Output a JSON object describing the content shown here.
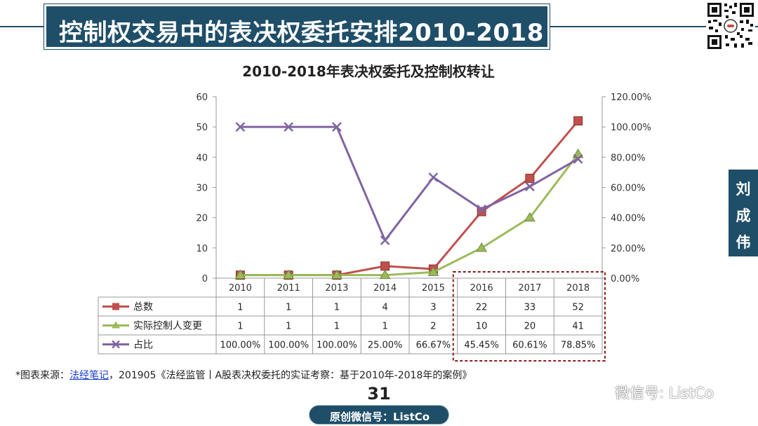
{
  "banner": {
    "title": "控制权交易中的表决权委托安排2010-2018"
  },
  "side_tab": {
    "chars": [
      "刘",
      "成",
      "伟"
    ]
  },
  "source": {
    "prefix": "*图表来源：",
    "link": "法经笔记",
    "suffix": "，201905《法经监管丨A股表决权委托的实证考察：基于2010年-2018年的案例》"
  },
  "page_number": "31",
  "watermark": {
    "text": "微信号: ListCo"
  },
  "footer": {
    "text": "原创微信号：ListCo"
  },
  "chart_data": {
    "type": "line",
    "title": "2010-2018年表决权委托及控制权转让",
    "categories": [
      "2010",
      "2011",
      "2013",
      "2014",
      "2015",
      "2016",
      "2017",
      "2018"
    ],
    "series": [
      {
        "name": "总数",
        "axis": "left",
        "color": "#c0504d",
        "marker": "square",
        "values": [
          1,
          1,
          1,
          4,
          3,
          22,
          33,
          52
        ]
      },
      {
        "name": "实际控制人变更",
        "axis": "left",
        "color": "#9bbb59",
        "marker": "triangle",
        "values": [
          1,
          1,
          1,
          1,
          2,
          10,
          20,
          41
        ]
      },
      {
        "name": "占比",
        "axis": "right",
        "color": "#8064a2",
        "marker": "x",
        "values": [
          1.0,
          1.0,
          1.0,
          0.25,
          0.6667,
          0.4545,
          0.6061,
          0.7885
        ],
        "labels": [
          "100.00%",
          "100.00%",
          "100.00%",
          "25.00%",
          "66.67%",
          "45.45%",
          "60.61%",
          "78.85%"
        ]
      }
    ],
    "y_left": {
      "min": 0,
      "max": 60,
      "ticks": [
        "0",
        "10",
        "20",
        "30",
        "40",
        "50",
        "60"
      ]
    },
    "y_right": {
      "min": 0,
      "max": 1.2,
      "ticks": [
        "0.00%",
        "20.00%",
        "40.00%",
        "60.00%",
        "80.00%",
        "100.00%",
        "120.00%"
      ]
    },
    "data_table": true,
    "highlight": {
      "categories": [
        "2016",
        "2017",
        "2018"
      ],
      "style": "dashed-box",
      "color": "#8b1a1a"
    }
  }
}
